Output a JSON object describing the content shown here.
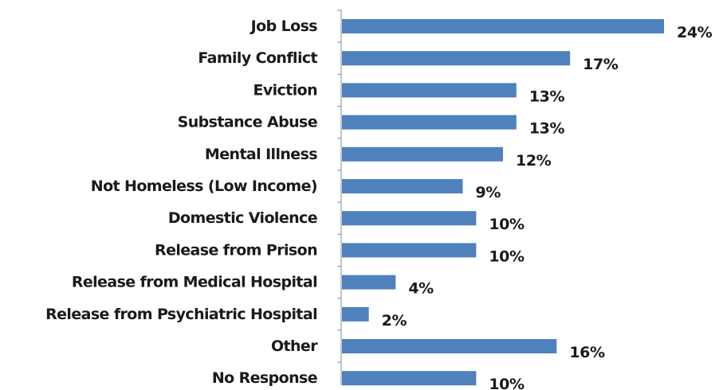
{
  "chart_data": {
    "type": "bar",
    "orientation": "horizontal",
    "categories": [
      "Job Loss",
      "Family Conflict",
      "Eviction",
      "Substance Abuse",
      "Mental Illness",
      "Not Homeless (Low Income)",
      "Domestic Violence",
      "Release from Prison",
      "Release from Medical Hospital",
      "Release from Psychiatric Hospital",
      "Other",
      "No Response"
    ],
    "values": [
      24,
      17,
      13,
      13,
      12,
      9,
      10,
      10,
      4,
      2,
      16,
      10
    ],
    "value_labels": [
      "24%",
      "17%",
      "13%",
      "13%",
      "12%",
      "9%",
      "10%",
      "10%",
      "4%",
      "2%",
      "16%",
      "10%"
    ],
    "title": "",
    "xlabel": "",
    "ylabel": "",
    "xlim": [
      0,
      24
    ],
    "grid": false,
    "bar_color": "#4f81bd"
  }
}
